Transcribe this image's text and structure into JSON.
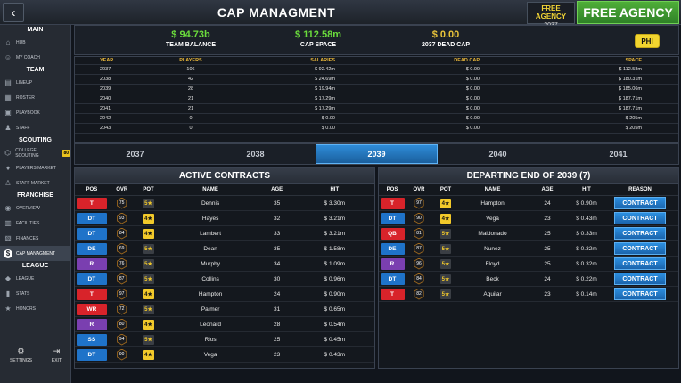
{
  "header": {
    "title": "CAP MANAGMENT",
    "free_agency_label": "FREE AGENCY",
    "free_agency_year": "2037",
    "free_agency_button": "FREE AGENCY"
  },
  "sidebar": {
    "sections": [
      {
        "title": "MAIN",
        "items": [
          {
            "label": "HUB",
            "icon": "home-icon"
          },
          {
            "label": "MY COACH",
            "icon": "coach-icon"
          }
        ]
      },
      {
        "title": "TEAM",
        "items": [
          {
            "label": "LINEUP",
            "icon": "lineup-icon"
          },
          {
            "label": "ROSTER",
            "icon": "roster-icon"
          },
          {
            "label": "PLAYBOOK",
            "icon": "playbook-icon"
          },
          {
            "label": "STAFF",
            "icon": "staff-icon"
          }
        ]
      },
      {
        "title": "SCOUTING",
        "items": [
          {
            "label": "COLLEGE SCOUTING",
            "icon": "college-icon",
            "badge": "80"
          },
          {
            "label": "PLAYERS MARKET",
            "icon": "market-icon"
          },
          {
            "label": "STAFF MARKET",
            "icon": "staff-market-icon"
          }
        ]
      },
      {
        "title": "FRANCHISE",
        "items": [
          {
            "label": "OVERVIEW",
            "icon": "overview-icon"
          },
          {
            "label": "FACILITIES",
            "icon": "facilities-icon"
          },
          {
            "label": "FINANCES",
            "icon": "finances-icon"
          },
          {
            "label": "CAP MANAGMENT",
            "icon": "dollar-icon",
            "active": true
          }
        ]
      },
      {
        "title": "LEAGUE",
        "items": [
          {
            "label": "LEAGUE",
            "icon": "league-icon"
          },
          {
            "label": "STATS",
            "icon": "stats-icon"
          },
          {
            "label": "HONORS",
            "icon": "honors-icon"
          }
        ]
      }
    ],
    "settings_label": "SETTINGS",
    "exit_label": "EXIT"
  },
  "summary": {
    "team_balance_value": "$ 94.73b",
    "team_balance_label": "TEAM BALANCE",
    "cap_space_value": "$ 112.58m",
    "cap_space_label": "CAP SPACE",
    "dead_cap_value": "$ 0.00",
    "dead_cap_label": "2037 DEAD CAP",
    "team_abbr": "PHI"
  },
  "years_table": {
    "headers": [
      "YEAR",
      "PLAYERS",
      "SALARIES",
      "DEAD CAP",
      "SPACE"
    ],
    "rows": [
      [
        "2037",
        "106",
        "$ 92.42m",
        "$ 0.00",
        "$ 112.58m"
      ],
      [
        "2038",
        "42",
        "$ 24.69m",
        "$ 0.00",
        "$ 180.31m"
      ],
      [
        "2039",
        "28",
        "$ 19.94m",
        "$ 0.00",
        "$ 185.06m"
      ],
      [
        "2040",
        "21",
        "$ 17.29m",
        "$ 0.00",
        "$ 187.71m"
      ],
      [
        "2041",
        "21",
        "$ 17.29m",
        "$ 0.00",
        "$ 187.71m"
      ],
      [
        "2042",
        "0",
        "$ 0.00",
        "$ 0.00",
        "$ 205m"
      ],
      [
        "2043",
        "0",
        "$ 0.00",
        "$ 0.00",
        "$ 205m"
      ]
    ]
  },
  "year_tabs": [
    {
      "label": "2037"
    },
    {
      "label": "2038"
    },
    {
      "label": "2039",
      "selected": true
    },
    {
      "label": "2040"
    },
    {
      "label": "2041"
    }
  ],
  "active_contracts": {
    "title": "ACTIVE CONTRACTS",
    "headers": [
      "POS",
      "OVR",
      "POT",
      "NAME",
      "AGE",
      "HIT"
    ],
    "rows": [
      {
        "pos": "T",
        "ovr": "75",
        "pot": "5★",
        "name": "Dennis",
        "age": "35",
        "hit": "$ 3.30m"
      },
      {
        "pos": "DT",
        "ovr": "93",
        "pot": "4★",
        "name": "Hayes",
        "age": "32",
        "hit": "$ 3.21m"
      },
      {
        "pos": "DT",
        "ovr": "84",
        "pot": "4★",
        "name": "Lambert",
        "age": "33",
        "hit": "$ 3.21m"
      },
      {
        "pos": "DE",
        "ovr": "69",
        "pot": "5★",
        "name": "Dean",
        "age": "35",
        "hit": "$ 1.58m"
      },
      {
        "pos": "R",
        "ovr": "76",
        "pot": "5★",
        "name": "Murphy",
        "age": "34",
        "hit": "$ 1.09m"
      },
      {
        "pos": "DT",
        "ovr": "87",
        "pot": "5★",
        "name": "Collins",
        "age": "30",
        "hit": "$ 0.96m"
      },
      {
        "pos": "T",
        "ovr": "97",
        "pot": "4★",
        "name": "Hampton",
        "age": "24",
        "hit": "$ 0.90m"
      },
      {
        "pos": "WR",
        "ovr": "72",
        "pot": "5★",
        "name": "Palmer",
        "age": "31",
        "hit": "$ 0.65m"
      },
      {
        "pos": "R",
        "ovr": "80",
        "pot": "4★",
        "name": "Leonard",
        "age": "28",
        "hit": "$ 0.54m"
      },
      {
        "pos": "SS",
        "ovr": "94",
        "pot": "5★",
        "name": "Rios",
        "age": "25",
        "hit": "$ 0.45m"
      },
      {
        "pos": "DT",
        "ovr": "90",
        "pot": "4★",
        "name": "Vega",
        "age": "23",
        "hit": "$ 0.43m"
      }
    ]
  },
  "departing": {
    "title": "DEPARTING END OF 2039 (7)",
    "headers": [
      "POS",
      "OVR",
      "POT",
      "NAME",
      "AGE",
      "HIT",
      "REASON"
    ],
    "rows": [
      {
        "pos": "T",
        "ovr": "97",
        "pot": "4★",
        "name": "Hampton",
        "age": "24",
        "hit": "$ 0.90m",
        "reason": "CONTRACT"
      },
      {
        "pos": "DT",
        "ovr": "90",
        "pot": "4★",
        "name": "Vega",
        "age": "23",
        "hit": "$ 0.43m",
        "reason": "CONTRACT"
      },
      {
        "pos": "QB",
        "ovr": "81",
        "pot": "5★",
        "name": "Maldonado",
        "age": "25",
        "hit": "$ 0.33m",
        "reason": "CONTRACT"
      },
      {
        "pos": "DE",
        "ovr": "87",
        "pot": "5★",
        "name": "Nunez",
        "age": "25",
        "hit": "$ 0.32m",
        "reason": "CONTRACT"
      },
      {
        "pos": "R",
        "ovr": "96",
        "pot": "5★",
        "name": "Floyd",
        "age": "25",
        "hit": "$ 0.32m",
        "reason": "CONTRACT"
      },
      {
        "pos": "DT",
        "ovr": "84",
        "pot": "5★",
        "name": "Beck",
        "age": "24",
        "hit": "$ 0.22m",
        "reason": "CONTRACT"
      },
      {
        "pos": "T",
        "ovr": "82",
        "pot": "5★",
        "name": "Aguilar",
        "age": "23",
        "hit": "$ 0.14m",
        "reason": "CONTRACT"
      }
    ]
  },
  "colors": {
    "T": "#d8232a",
    "DT": "#1f73c9",
    "DE": "#1f73c9",
    "R": "#7a3fb0",
    "WR": "#d8232a",
    "SS": "#1f73c9",
    "QB": "#d8232a",
    "accent": "#2c8fe0",
    "pot4": "#f2c92a",
    "pot5": "#3a3e44"
  }
}
